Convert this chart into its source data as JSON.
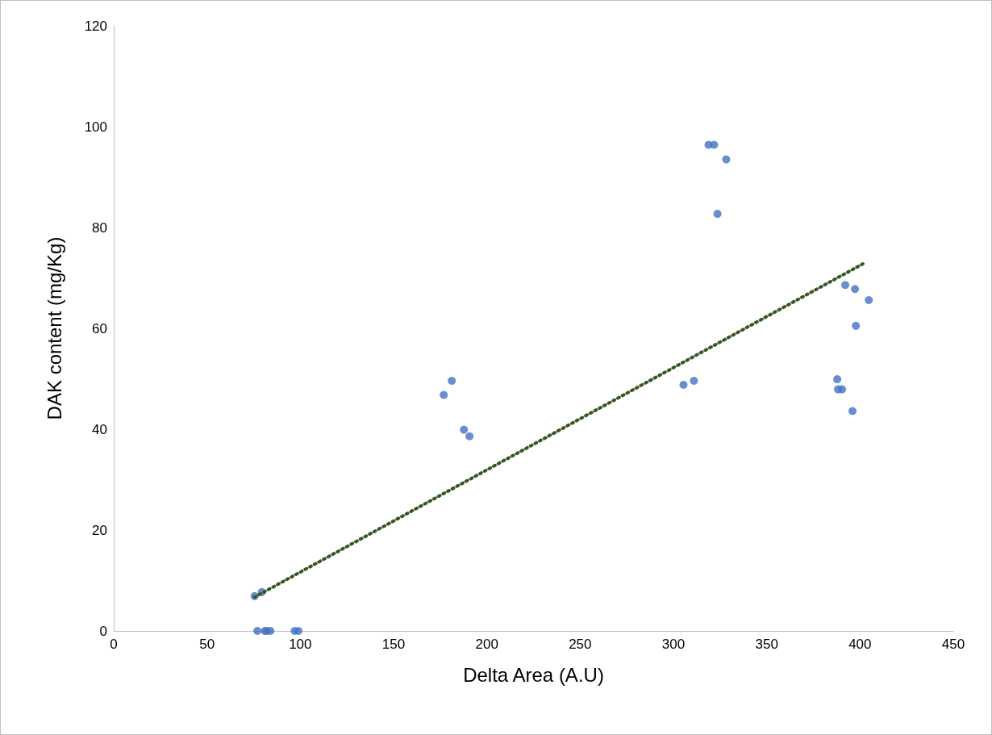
{
  "chart_data": {
    "type": "scatter",
    "xlabel": "Delta Area (A.U)",
    "ylabel": "DAK content (mg/Kg)",
    "xlim": [
      0,
      450
    ],
    "xticks": [
      0,
      50,
      100,
      150,
      200,
      250,
      300,
      350,
      400,
      450
    ],
    "ylim": [
      0,
      120
    ],
    "yticks": [
      0,
      20,
      40,
      60,
      80,
      100,
      120
    ],
    "grid": false,
    "series": [
      {
        "color": "#4472c4",
        "marker": "circle",
        "x": [
          75.5,
          79.4,
          77,
          81,
          82,
          84,
          97,
          99,
          176.9,
          181.2,
          187.7,
          190.7,
          318.8,
          321.8,
          328.3,
          323.6,
          305.4,
          311,
          392.1,
          397.3,
          404.7,
          397.8,
          387.8,
          388.2,
          390.4,
          396
        ],
        "values": [
          6.9,
          7.7,
          0,
          0,
          0,
          0,
          0,
          0,
          46.8,
          49.6,
          39.9,
          38.6,
          96.4,
          96.4,
          93.5,
          82.7,
          48.8,
          49.6,
          68.6,
          67.8,
          65.6,
          60.5,
          49.9,
          47.9,
          47.9,
          43.6
        ]
      },
      {
        "type": "line",
        "color": "#375623",
        "marker": "none",
        "line_style": "dotted",
        "x": [
          75.5,
          401.6
        ],
        "values": [
          6.7,
          72.8
        ]
      }
    ]
  }
}
